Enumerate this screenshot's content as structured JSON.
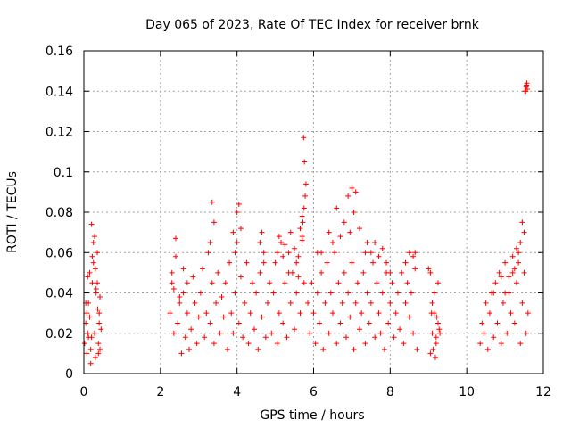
{
  "chart_data": {
    "type": "scatter",
    "title": "Day 065 of 2023, Rate Of TEC Index for receiver brnk",
    "xlabel": "GPS time / hours",
    "ylabel": "ROTI / TECUs",
    "xlim": [
      0,
      12
    ],
    "ylim": [
      0,
      0.16
    ],
    "xticks": [
      "0",
      "2",
      "4",
      "6",
      "8",
      "10",
      "12"
    ],
    "yticks": [
      "0",
      "0.02",
      "0.04",
      "0.06",
      "0.08",
      "0.1",
      "0.12",
      "0.14",
      "0.16"
    ],
    "grid": true,
    "marker": "+",
    "color": "#ff0000",
    "series": [
      {
        "x": [
          0.02,
          0.05,
          0.08,
          0.1,
          0.12,
          0.15,
          0.18,
          0.2,
          0.22,
          0.25,
          0.28,
          0.3,
          0.32,
          0.35,
          0.38,
          0.4,
          0.42,
          0.45,
          0.05,
          0.1,
          0.15,
          0.2,
          0.25,
          0.3,
          0.35,
          0.4,
          0.42,
          0.18,
          0.22,
          0.28,
          0.32,
          0.36,
          0.12,
          0.08,
          0.38,
          2.25,
          2.3,
          2.35,
          2.4,
          2.45,
          2.5,
          2.55,
          2.6,
          2.65,
          2.7,
          2.75,
          2.8,
          2.85,
          2.9,
          2.95,
          3.0,
          3.05,
          3.1,
          3.15,
          3.2,
          3.25,
          3.3,
          3.35,
          3.4,
          3.45,
          3.5,
          3.55,
          3.6,
          3.65,
          3.7,
          3.75,
          3.8,
          3.85,
          3.9,
          3.95,
          4.0,
          4.05,
          4.1,
          4.15,
          4.2,
          4.25,
          4.3,
          4.35,
          4.4,
          4.45,
          4.5,
          4.55,
          4.6,
          4.65,
          4.7,
          4.75,
          4.8,
          4.85,
          4.9,
          4.95,
          5.0,
          5.05,
          5.1,
          5.15,
          5.2,
          5.25,
          5.3,
          5.35,
          5.4,
          5.45,
          5.5,
          5.55,
          5.6,
          5.65,
          5.7,
          5.75,
          3.35,
          3.4,
          3.3,
          3.9,
          4.0,
          4.05,
          4.1,
          3.95,
          4.6,
          4.65,
          4.7,
          5.05,
          5.1,
          5.2,
          5.25,
          5.35,
          5.4,
          5.5,
          5.55,
          5.6,
          5.65,
          5.7,
          5.72,
          5.75,
          5.78,
          5.8,
          5.76,
          5.74,
          5.7,
          2.4,
          2.3,
          2.35,
          2.7,
          2.6,
          2.5,
          5.85,
          5.9,
          5.95,
          6.0,
          6.05,
          6.1,
          6.15,
          6.2,
          6.25,
          6.3,
          6.35,
          6.4,
          6.45,
          6.5,
          6.55,
          6.6,
          6.65,
          6.7,
          6.75,
          6.8,
          6.85,
          6.9,
          6.95,
          7.0,
          7.05,
          7.1,
          7.15,
          7.2,
          7.25,
          7.3,
          7.35,
          7.4,
          7.45,
          7.5,
          7.55,
          7.6,
          7.65,
          7.7,
          7.75,
          7.8,
          7.85,
          7.9,
          7.95,
          8.0,
          8.05,
          8.1,
          8.15,
          8.2,
          8.25,
          8.3,
          8.35,
          8.4,
          8.45,
          8.5,
          8.55,
          8.6,
          8.65,
          8.7,
          6.1,
          6.6,
          6.8,
          6.9,
          7.0,
          7.1,
          7.05,
          7.2,
          6.95,
          6.5,
          6.7,
          7.5,
          7.6,
          7.7,
          7.8,
          7.9,
          8.0,
          8.5,
          8.6,
          8.65,
          8.4,
          7.35,
          7.4,
          6.4,
          6.2,
          9.05,
          9.1,
          9.15,
          9.2,
          9.25,
          9.3,
          9.1,
          9.2,
          9.05,
          9.15,
          9.25,
          9.0,
          9.12,
          9.22,
          9.18,
          9.08,
          9.28,
          10.35,
          10.4,
          10.45,
          10.5,
          10.55,
          10.6,
          10.65,
          10.7,
          10.75,
          10.8,
          10.85,
          10.9,
          10.95,
          11.0,
          11.05,
          11.1,
          11.15,
          11.2,
          11.25,
          11.3,
          11.35,
          11.4,
          11.45,
          11.5,
          11.55,
          11.6,
          11.0,
          11.1,
          11.2,
          11.3,
          11.4,
          11.45,
          11.5,
          11.35,
          11.25,
          10.9,
          10.7,
          11.55,
          11.57,
          11.52,
          11.58,
          11.56,
          11.54
        ],
        "y": [
          0.015,
          0.025,
          0.01,
          0.02,
          0.035,
          0.05,
          0.012,
          0.018,
          0.045,
          0.055,
          0.02,
          0.008,
          0.04,
          0.06,
          0.015,
          0.025,
          0.038,
          0.022,
          0.035,
          0.048,
          0.028,
          0.074,
          0.065,
          0.052,
          0.045,
          0.03,
          0.012,
          0.005,
          0.058,
          0.068,
          0.042,
          0.032,
          0.018,
          0.03,
          0.01,
          0.03,
          0.045,
          0.02,
          0.058,
          0.025,
          0.035,
          0.01,
          0.04,
          0.018,
          0.03,
          0.012,
          0.022,
          0.048,
          0.035,
          0.015,
          0.028,
          0.04,
          0.052,
          0.018,
          0.03,
          0.06,
          0.025,
          0.045,
          0.015,
          0.035,
          0.05,
          0.02,
          0.038,
          0.028,
          0.045,
          0.012,
          0.055,
          0.03,
          0.02,
          0.04,
          0.065,
          0.025,
          0.048,
          0.018,
          0.035,
          0.055,
          0.015,
          0.03,
          0.045,
          0.022,
          0.04,
          0.012,
          0.05,
          0.028,
          0.06,
          0.018,
          0.035,
          0.045,
          0.02,
          0.04,
          0.055,
          0.015,
          0.03,
          0.065,
          0.025,
          0.045,
          0.018,
          0.06,
          0.035,
          0.05,
          0.022,
          0.04,
          0.058,
          0.03,
          0.068,
          0.045,
          0.085,
          0.075,
          0.065,
          0.07,
          0.08,
          0.084,
          0.072,
          0.06,
          0.065,
          0.07,
          0.055,
          0.06,
          0.068,
          0.058,
          0.064,
          0.05,
          0.07,
          0.062,
          0.055,
          0.048,
          0.072,
          0.066,
          0.075,
          0.082,
          0.088,
          0.094,
          0.105,
          0.117,
          0.078,
          0.067,
          0.05,
          0.042,
          0.045,
          0.052,
          0.038,
          0.035,
          0.02,
          0.045,
          0.03,
          0.015,
          0.04,
          0.025,
          0.05,
          0.012,
          0.035,
          0.055,
          0.02,
          0.04,
          0.03,
          0.06,
          0.015,
          0.045,
          0.025,
          0.035,
          0.05,
          0.018,
          0.04,
          0.028,
          0.055,
          0.012,
          0.035,
          0.045,
          0.022,
          0.03,
          0.05,
          0.015,
          0.04,
          0.025,
          0.035,
          0.055,
          0.018,
          0.045,
          0.03,
          0.02,
          0.04,
          0.012,
          0.05,
          0.025,
          0.035,
          0.045,
          0.018,
          0.03,
          0.04,
          0.022,
          0.05,
          0.015,
          0.035,
          0.045,
          0.028,
          0.04,
          0.02,
          0.06,
          0.012,
          0.06,
          0.082,
          0.075,
          0.088,
          0.092,
          0.09,
          0.08,
          0.072,
          0.07,
          0.065,
          0.068,
          0.06,
          0.065,
          0.058,
          0.062,
          0.055,
          0.05,
          0.06,
          0.058,
          0.052,
          0.055,
          0.06,
          0.065,
          0.07,
          0.06,
          0.01,
          0.02,
          0.03,
          0.015,
          0.025,
          0.02,
          0.035,
          0.018,
          0.05,
          0.04,
          0.045,
          0.052,
          0.012,
          0.028,
          0.008,
          0.03,
          0.022,
          0.015,
          0.025,
          0.02,
          0.035,
          0.012,
          0.03,
          0.04,
          0.018,
          0.045,
          0.025,
          0.05,
          0.015,
          0.035,
          0.055,
          0.02,
          0.04,
          0.03,
          0.05,
          0.025,
          0.045,
          0.06,
          0.015,
          0.035,
          0.05,
          0.02,
          0.03,
          0.04,
          0.048,
          0.058,
          0.062,
          0.065,
          0.075,
          0.07,
          0.055,
          0.052,
          0.048,
          0.04,
          0.142,
          0.144,
          0.14,
          0.141,
          0.143,
          0.14
        ]
      }
    ]
  }
}
